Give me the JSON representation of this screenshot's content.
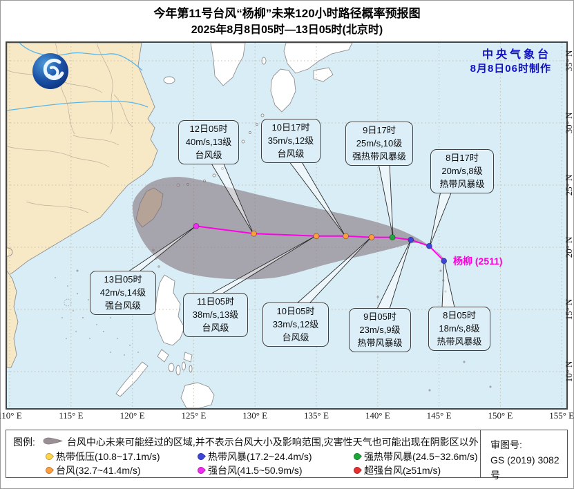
{
  "title": {
    "line1": "今年第11号台风“杨柳”未来120小时路径概率预报图",
    "line2": "2025年8月8日05时—13日05时(北京时)"
  },
  "agency": {
    "line1": "中央气象台",
    "line2": "8月8日06时制作"
  },
  "storm": {
    "label": "杨柳 (2511)",
    "label_color": "#ff00dd"
  },
  "axes": {
    "lon": [
      "110° E",
      "115° E",
      "120° E",
      "125° E",
      "130° E",
      "135° E",
      "140° E",
      "145° E",
      "150° E",
      "155° E"
    ],
    "lat": [
      "35° N",
      "30° N",
      "25° N",
      "20° N",
      "15° N",
      "10° N"
    ]
  },
  "track": [
    {
      "time": "8日05时",
      "wind": "18m/s,8级",
      "category": "热带风暴级",
      "lon": 145.4,
      "lat": 18.9,
      "color": "#3d46d8",
      "current": true
    },
    {
      "time": "8日17时",
      "wind": "20m/s,8级",
      "category": "热带风暴级",
      "lon": 144.2,
      "lat": 20.1,
      "color": "#3d46d8"
    },
    {
      "time": "9日05时",
      "wind": "23m/s,9级",
      "category": "热带风暴级",
      "lon": 142.7,
      "lat": 20.6,
      "color": "#3d46d8"
    },
    {
      "time": "9日17时",
      "wind": "25m/s,10级",
      "category": "强热带风暴级",
      "lon": 141.2,
      "lat": 20.8,
      "color": "#1ea83b"
    },
    {
      "time": "10日05时",
      "wind": "33m/s,12级",
      "category": "台风级",
      "lon": 139.5,
      "lat": 20.8,
      "color": "#ff9e3d"
    },
    {
      "time": "10日17时",
      "wind": "35m/s,12级",
      "category": "台风级",
      "lon": 137.4,
      "lat": 20.9,
      "color": "#ff9e3d"
    },
    {
      "time": "11日05时",
      "wind": "38m/s,13级",
      "category": "台风级",
      "lon": 135.0,
      "lat": 20.9,
      "color": "#ff9e3d"
    },
    {
      "time": "12日05时",
      "wind": "40m/s,13级",
      "category": "台风级",
      "lon": 129.9,
      "lat": 21.1,
      "color": "#ff9e3d"
    },
    {
      "time": "13日05时",
      "wind": "42m/s,14级",
      "category": "强台风级",
      "lon": 125.2,
      "lat": 21.7,
      "color": "#f02cf0"
    }
  ],
  "cone": {
    "fill": "#7d6973",
    "opacity": 0.55
  },
  "track_line_color": "#ff00e6",
  "legend": {
    "label": "图例:",
    "cone_text": "台风中心未来可能经过的区域,并不表示台风大小及影响范围,灾害性天气也可能出现在阴影区以外",
    "items": [
      {
        "label": "热带低压(10.8~17.1m/s)",
        "color": "#ffd54a"
      },
      {
        "label": "热带风暴(17.2~24.4m/s)",
        "color": "#3d46d8"
      },
      {
        "label": "强热带风暴(24.5~32.6m/s)",
        "color": "#1ea83b"
      },
      {
        "label": "台风(32.7~41.4m/s)",
        "color": "#ff9e3d"
      },
      {
        "label": "强台风(41.5~50.9m/s)",
        "color": "#f02cf0"
      },
      {
        "label": "超强台风(≥51m/s)",
        "color": "#e43030"
      }
    ],
    "license_label": "审图号:",
    "license_no": "GS (2019) 3082号"
  }
}
